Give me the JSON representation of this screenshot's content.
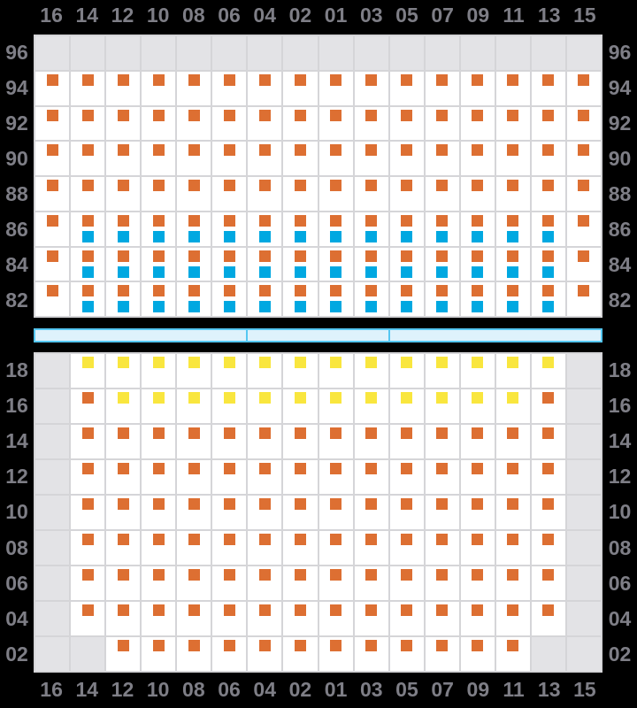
{
  "palette": {
    "background": "#000000",
    "label": "#7e7e86",
    "grid_line": "#d5d5d8",
    "cell_bg": "#ffffff",
    "empty_cell": "#e3e3e6",
    "orange": "#dd6f32",
    "blue": "#00a8e1",
    "yellow": "#f9e63e",
    "bar_fill": "#def2fc",
    "bar_border": "#55c7f2"
  },
  "column_labels": [
    "16",
    "14",
    "12",
    "10",
    "08",
    "06",
    "04",
    "02",
    "01",
    "03",
    "05",
    "07",
    "09",
    "11",
    "13",
    "15"
  ],
  "marker_legend": {
    "o": "orange-marker",
    "b": "blue-marker",
    "y": "yellow-marker",
    "g": "empty-gray-cell"
  },
  "grids": [
    {
      "id": "grid1",
      "row_labels": [
        "96",
        "94",
        "92",
        "90",
        "88",
        "86",
        "84",
        "82"
      ],
      "rows": [
        [
          "g",
          "g",
          "g",
          "g",
          "g",
          "g",
          "g",
          "g",
          "g",
          "g",
          "g",
          "g",
          "g",
          "g",
          "g",
          "g"
        ],
        [
          "o",
          "o",
          "o",
          "o",
          "o",
          "o",
          "o",
          "o",
          "o",
          "o",
          "o",
          "o",
          "o",
          "o",
          "o",
          "o"
        ],
        [
          "o",
          "o",
          "o",
          "o",
          "o",
          "o",
          "o",
          "o",
          "o",
          "o",
          "o",
          "o",
          "o",
          "o",
          "o",
          "o"
        ],
        [
          "o",
          "o",
          "o",
          "o",
          "o",
          "o",
          "o",
          "o",
          "o",
          "o",
          "o",
          "o",
          "o",
          "o",
          "o",
          "o"
        ],
        [
          "o",
          "o",
          "o",
          "o",
          "o",
          "o",
          "o",
          "o",
          "o",
          "o",
          "o",
          "o",
          "o",
          "o",
          "o",
          "o"
        ],
        [
          "o",
          "ob",
          "ob",
          "ob",
          "ob",
          "ob",
          "ob",
          "ob",
          "ob",
          "ob",
          "ob",
          "ob",
          "ob",
          "ob",
          "ob",
          "o"
        ],
        [
          "o",
          "ob",
          "ob",
          "ob",
          "ob",
          "ob",
          "ob",
          "ob",
          "ob",
          "ob",
          "ob",
          "ob",
          "ob",
          "ob",
          "ob",
          "o"
        ],
        [
          "o",
          "ob",
          "ob",
          "ob",
          "ob",
          "ob",
          "ob",
          "ob",
          "ob",
          "ob",
          "ob",
          "ob",
          "ob",
          "ob",
          "ob",
          "o"
        ]
      ]
    },
    {
      "id": "grid2",
      "row_labels": [
        "18",
        "16",
        "14",
        "12",
        "10",
        "08",
        "06",
        "04",
        "02"
      ],
      "rows": [
        [
          "g",
          "y",
          "y",
          "y",
          "y",
          "y",
          "y",
          "y",
          "y",
          "y",
          "y",
          "y",
          "y",
          "y",
          "y",
          "g"
        ],
        [
          "g",
          "o",
          "y",
          "y",
          "y",
          "y",
          "y",
          "y",
          "y",
          "y",
          "y",
          "y",
          "y",
          "y",
          "o",
          "g"
        ],
        [
          "g",
          "o",
          "o",
          "o",
          "o",
          "o",
          "o",
          "o",
          "o",
          "o",
          "o",
          "o",
          "o",
          "o",
          "o",
          "g"
        ],
        [
          "g",
          "o",
          "o",
          "o",
          "o",
          "o",
          "o",
          "o",
          "o",
          "o",
          "o",
          "o",
          "o",
          "o",
          "o",
          "g"
        ],
        [
          "g",
          "o",
          "o",
          "o",
          "o",
          "o",
          "o",
          "o",
          "o",
          "o",
          "o",
          "o",
          "o",
          "o",
          "o",
          "g"
        ],
        [
          "g",
          "o",
          "o",
          "o",
          "o",
          "o",
          "o",
          "o",
          "o",
          "o",
          "o",
          "o",
          "o",
          "o",
          "o",
          "g"
        ],
        [
          "g",
          "o",
          "o",
          "o",
          "o",
          "o",
          "o",
          "o",
          "o",
          "o",
          "o",
          "o",
          "o",
          "o",
          "o",
          "g"
        ],
        [
          "g",
          "o",
          "o",
          "o",
          "o",
          "o",
          "o",
          "o",
          "o",
          "o",
          "o",
          "o",
          "o",
          "o",
          "o",
          "g"
        ],
        [
          "g",
          "g",
          "o",
          "o",
          "o",
          "o",
          "o",
          "o",
          "o",
          "o",
          "o",
          "o",
          "o",
          "o",
          "g",
          "g"
        ]
      ]
    }
  ],
  "divider_bar": {
    "segment_columns": [
      6,
      4,
      6
    ]
  }
}
